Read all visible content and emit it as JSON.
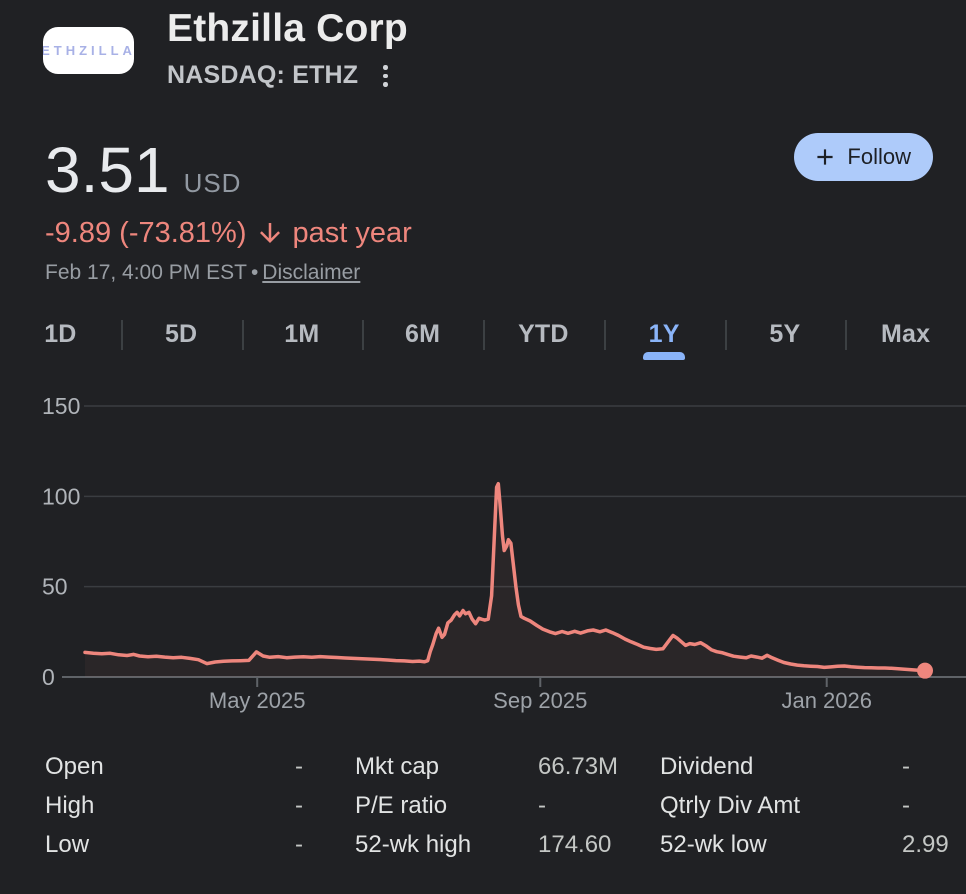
{
  "header": {
    "company_name": "Ethzilla Corp",
    "ticker": "NASDAQ: ETHZ",
    "logo_text": "ETHZILLA"
  },
  "quote": {
    "price": "3.51",
    "currency": "USD",
    "change": "-9.89 (-73.81%)",
    "change_period": "past year",
    "change_color": "#ee867d",
    "timestamp": "Feb 17, 4:00 PM EST",
    "separator": "•",
    "disclaimer_label": "Disclaimer"
  },
  "follow_button": {
    "label": "Follow"
  },
  "tabs": {
    "accent_color": "#8ab4f8",
    "items": [
      {
        "label": "1D",
        "selected": false
      },
      {
        "label": "5D",
        "selected": false
      },
      {
        "label": "1M",
        "selected": false
      },
      {
        "label": "6M",
        "selected": false
      },
      {
        "label": "YTD",
        "selected": false
      },
      {
        "label": "1Y",
        "selected": true
      },
      {
        "label": "5Y",
        "selected": false
      },
      {
        "label": "Max",
        "selected": false
      }
    ]
  },
  "chart_data": {
    "type": "line",
    "series_name": "Ethzilla Corp (ETHZ) closing price, past year",
    "ylim": [
      0,
      150
    ],
    "y_ticks": [
      0,
      50,
      100,
      150
    ],
    "x_ticks": [
      {
        "label": "May 2025",
        "f": 0.205
      },
      {
        "label": "Sep 2025",
        "f": 0.542
      },
      {
        "label": "Jan 2026",
        "f": 0.883
      }
    ],
    "line_color": "#ee867d",
    "fill_color": "rgba(238,134,125,0.05)",
    "grid_color": "#3a3d41",
    "axis_color": "#5f6368",
    "y_label_color": "#b0b4b9",
    "x_label_color": "#9da2a8",
    "end_dot": true,
    "last_value": 3.51,
    "points": [
      [
        0,
        13.6
      ],
      [
        0.01,
        13.2
      ],
      [
        0.02,
        12.9
      ],
      [
        0.03,
        13.1
      ],
      [
        0.04,
        12.3
      ],
      [
        0.05,
        11.9
      ],
      [
        0.058,
        12.5
      ],
      [
        0.065,
        11.6
      ],
      [
        0.075,
        11.2
      ],
      [
        0.085,
        11.5
      ],
      [
        0.095,
        11
      ],
      [
        0.105,
        10.7
      ],
      [
        0.115,
        10.9
      ],
      [
        0.125,
        10.3
      ],
      [
        0.135,
        9.6
      ],
      [
        0.145,
        7.4
      ],
      [
        0.155,
        8.3
      ],
      [
        0.165,
        8.7
      ],
      [
        0.175,
        8.9
      ],
      [
        0.185,
        9
      ],
      [
        0.195,
        9.2
      ],
      [
        0.204,
        13.9
      ],
      [
        0.212,
        11.6
      ],
      [
        0.22,
        10.9
      ],
      [
        0.23,
        11.3
      ],
      [
        0.24,
        10.7
      ],
      [
        0.25,
        11
      ],
      [
        0.26,
        11.2
      ],
      [
        0.27,
        10.9
      ],
      [
        0.28,
        11.3
      ],
      [
        0.29,
        11
      ],
      [
        0.3,
        10.8
      ],
      [
        0.31,
        10.5
      ],
      [
        0.32,
        10.3
      ],
      [
        0.33,
        10.1
      ],
      [
        0.34,
        9.9
      ],
      [
        0.35,
        9.7
      ],
      [
        0.36,
        9.4
      ],
      [
        0.37,
        9.1
      ],
      [
        0.38,
        8.9
      ],
      [
        0.39,
        8.6
      ],
      [
        0.398,
        8.8
      ],
      [
        0.404,
        8.4
      ],
      [
        0.408,
        9
      ],
      [
        0.411,
        14
      ],
      [
        0.414,
        18
      ],
      [
        0.418,
        24
      ],
      [
        0.421,
        27
      ],
      [
        0.425,
        22
      ],
      [
        0.428,
        23.5
      ],
      [
        0.432,
        30
      ],
      [
        0.436,
        31.5
      ],
      [
        0.44,
        34.5
      ],
      [
        0.443,
        35.8
      ],
      [
        0.446,
        33.8
      ],
      [
        0.45,
        36.8
      ],
      [
        0.453,
        35
      ],
      [
        0.457,
        35.8
      ],
      [
        0.461,
        32
      ],
      [
        0.465,
        29.5
      ],
      [
        0.469,
        32.5
      ],
      [
        0.472,
        32
      ],
      [
        0.476,
        31.5
      ],
      [
        0.48,
        32
      ],
      [
        0.484,
        45
      ],
      [
        0.487,
        75
      ],
      [
        0.49,
        105
      ],
      [
        0.492,
        107
      ],
      [
        0.494,
        96
      ],
      [
        0.497,
        78
      ],
      [
        0.499,
        70
      ],
      [
        0.502,
        72.5
      ],
      [
        0.504,
        76
      ],
      [
        0.507,
        74
      ],
      [
        0.51,
        62
      ],
      [
        0.513,
        50
      ],
      [
        0.516,
        40
      ],
      [
        0.519,
        33.5
      ],
      [
        0.523,
        32.5
      ],
      [
        0.53,
        31
      ],
      [
        0.538,
        28.5
      ],
      [
        0.545,
        26.5
      ],
      [
        0.553,
        25
      ],
      [
        0.56,
        24
      ],
      [
        0.568,
        25.2
      ],
      [
        0.575,
        24.2
      ],
      [
        0.583,
        25.3
      ],
      [
        0.59,
        24.3
      ],
      [
        0.598,
        25.5
      ],
      [
        0.605,
        26
      ],
      [
        0.613,
        25
      ],
      [
        0.62,
        26
      ],
      [
        0.628,
        24.5
      ],
      [
        0.635,
        23
      ],
      [
        0.643,
        21
      ],
      [
        0.65,
        19.5
      ],
      [
        0.658,
        18
      ],
      [
        0.665,
        16.5
      ],
      [
        0.673,
        15.8
      ],
      [
        0.68,
        15.3
      ],
      [
        0.688,
        15.6
      ],
      [
        0.695,
        20
      ],
      [
        0.7,
        23
      ],
      [
        0.705,
        21.5
      ],
      [
        0.71,
        19.5
      ],
      [
        0.715,
        17.5
      ],
      [
        0.72,
        18.5
      ],
      [
        0.726,
        18
      ],
      [
        0.733,
        19
      ],
      [
        0.74,
        17
      ],
      [
        0.746,
        15
      ],
      [
        0.752,
        14
      ],
      [
        0.758,
        13.5
      ],
      [
        0.765,
        12.5
      ],
      [
        0.772,
        11.5
      ],
      [
        0.78,
        11
      ],
      [
        0.787,
        10.6
      ],
      [
        0.793,
        11.6
      ],
      [
        0.8,
        11
      ],
      [
        0.806,
        10.4
      ],
      [
        0.812,
        12
      ],
      [
        0.818,
        10.6
      ],
      [
        0.825,
        9.3
      ],
      [
        0.832,
        8
      ],
      [
        0.84,
        7.2
      ],
      [
        0.848,
        6.6
      ],
      [
        0.856,
        6.2
      ],
      [
        0.864,
        6
      ],
      [
        0.872,
        5.8
      ],
      [
        0.88,
        5.3
      ],
      [
        0.888,
        5.6
      ],
      [
        0.896,
        5.9
      ],
      [
        0.904,
        6.1
      ],
      [
        0.912,
        5.7
      ],
      [
        0.92,
        5.4
      ],
      [
        0.928,
        5.2
      ],
      [
        0.936,
        5.1
      ],
      [
        0.944,
        5
      ],
      [
        0.952,
        5
      ],
      [
        0.96,
        4.8
      ],
      [
        0.968,
        4.6
      ],
      [
        0.976,
        4.3
      ],
      [
        0.984,
        4
      ],
      [
        0.992,
        3.7
      ],
      [
        1,
        3.5
      ]
    ]
  },
  "stats": {
    "rows": [
      {
        "l1": "Open",
        "v1": "-",
        "l2": "Mkt cap",
        "v2": "66.73M",
        "l3": "Dividend",
        "v3": "-"
      },
      {
        "l1": "High",
        "v1": "-",
        "l2": "P/E ratio",
        "v2": "-",
        "l3": "Qtrly Div Amt",
        "v3": "-"
      },
      {
        "l1": "Low",
        "v1": "-",
        "l2": "52-wk high",
        "v2": "174.60",
        "l3": "52-wk low",
        "v3": "2.99"
      }
    ]
  }
}
